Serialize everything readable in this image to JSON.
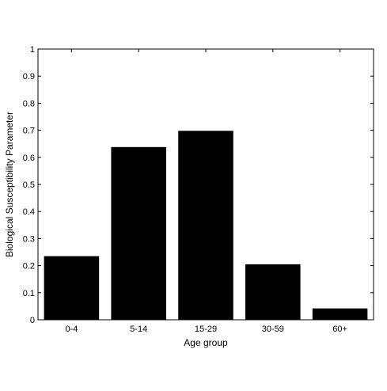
{
  "chart_data": {
    "type": "bar",
    "categories": [
      "0-4",
      "5-14",
      "15-29",
      "30-59",
      "60+"
    ],
    "values": [
      0.235,
      0.638,
      0.698,
      0.205,
      0.042
    ],
    "xlabel": "Age group",
    "ylabel": "Biological Susceptibility Parameter",
    "ylim": [
      0,
      1
    ],
    "yticks": [
      0,
      0.1,
      0.2,
      0.3,
      0.4,
      0.5,
      0.6,
      0.7,
      0.8,
      0.9,
      1
    ],
    "ytick_labels": [
      "0",
      "0.1",
      "0.2",
      "0.3",
      "0.4",
      "0.5",
      "0.6",
      "0.7",
      "0.8",
      "0.9",
      "1"
    ],
    "grid": false,
    "bar_color": "#000000"
  }
}
